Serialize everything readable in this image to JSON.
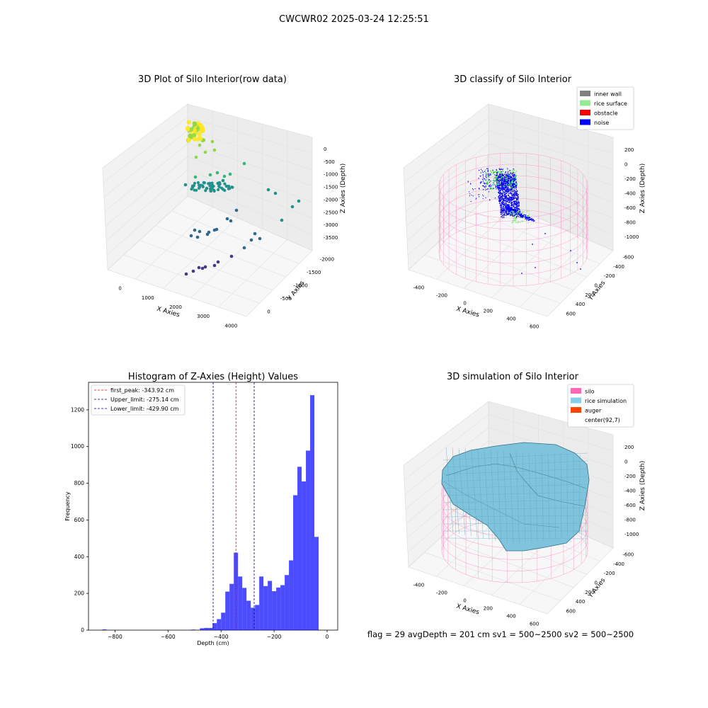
{
  "figure": {
    "suptitle": "CWCWR02 2025-03-24 12:25:51",
    "footer": "flag = 29  avgDepth = 201 cm  sv1 = 500~2500  sv2 = 500~2500"
  },
  "chart_data": [
    {
      "type": "scatter",
      "title": "3D Plot of Silo Interior(row data)",
      "xlabel": "X Axies",
      "ylabel": "Y Axies",
      "zlabel": "Z Axies (Depth)",
      "x_ticks": [
        "0",
        "1000",
        "2000",
        "3000",
        "4000"
      ],
      "y_ticks": [
        "0",
        "-500",
        "-1000",
        "-1500",
        "-2000"
      ],
      "z_ticks": [
        "0",
        "-500",
        "-1000",
        "-1500",
        "-2000",
        "-2500",
        "-3000",
        "-3500"
      ],
      "colormap": [
        "#fde725",
        "#90d743",
        "#35b779",
        "#21918c",
        "#31688e",
        "#443983",
        "#440154"
      ]
    },
    {
      "type": "scatter",
      "title": "3D classify of Silo Interior",
      "xlabel": "X Axies",
      "ylabel": "Y Axies",
      "zlabel": "Z Axies (Depth)",
      "x_ticks": [
        "-400",
        "-200",
        "0",
        "200",
        "400",
        "600"
      ],
      "y_ticks": [
        "600",
        "400",
        "200",
        "0",
        "-200",
        "-400",
        "-600"
      ],
      "z_ticks": [
        "200",
        "0",
        "-200",
        "-400",
        "-600",
        "-800",
        "-1000"
      ],
      "legend": [
        {
          "label": "inner wall",
          "color": "#808080"
        },
        {
          "label": "rice surface",
          "color": "#90ee90"
        },
        {
          "label": "obstacle",
          "color": "#ff0000"
        },
        {
          "label": "noise",
          "color": "#0000ff"
        }
      ],
      "legend_position": "top-right"
    },
    {
      "type": "bar",
      "title": "Histogram of Z-Axies (Height) Values",
      "xlabel": "Depth (cm)",
      "ylabel": "Frequency",
      "xlim": [
        -900,
        40
      ],
      "ylim": [
        0,
        1350
      ],
      "x_ticks": [
        -800,
        -600,
        -400,
        -200,
        0
      ],
      "y_ticks": [
        0,
        200,
        400,
        600,
        800,
        1000,
        1200
      ],
      "bin_width": 16,
      "bins": [
        {
          "x": -848,
          "count": 4
        },
        {
          "x": -512,
          "count": 3
        },
        {
          "x": -480,
          "count": 10
        },
        {
          "x": -464,
          "count": 12
        },
        {
          "x": -448,
          "count": 12
        },
        {
          "x": -432,
          "count": 38
        },
        {
          "x": -416,
          "count": 60
        },
        {
          "x": -400,
          "count": 95
        },
        {
          "x": -384,
          "count": 210
        },
        {
          "x": -368,
          "count": 252
        },
        {
          "x": -352,
          "count": 422
        },
        {
          "x": -336,
          "count": 292
        },
        {
          "x": -320,
          "count": 230
        },
        {
          "x": -304,
          "count": 160
        },
        {
          "x": -288,
          "count": 122
        },
        {
          "x": -272,
          "count": 137
        },
        {
          "x": -256,
          "count": 292
        },
        {
          "x": -240,
          "count": 240
        },
        {
          "x": -224,
          "count": 268
        },
        {
          "x": -208,
          "count": 212
        },
        {
          "x": -192,
          "count": 232
        },
        {
          "x": -176,
          "count": 245
        },
        {
          "x": -160,
          "count": 300
        },
        {
          "x": -144,
          "count": 380
        },
        {
          "x": -128,
          "count": 735
        },
        {
          "x": -112,
          "count": 890
        },
        {
          "x": -96,
          "count": 810
        },
        {
          "x": -80,
          "count": 978
        },
        {
          "x": -64,
          "count": 1280
        },
        {
          "x": -48,
          "count": 508
        }
      ],
      "bar_color": "#0000ff",
      "lines": [
        {
          "label": "first_peak: -343.92 cm",
          "x": -343.92,
          "color": "#ff0000"
        },
        {
          "label": "Upper_limit: -275.14 cm",
          "x": -275.14,
          "color": "#00008b"
        },
        {
          "label": "Lower_limit: -429.90 cm",
          "x": -429.9,
          "color": "#00008b"
        }
      ],
      "legend_position": "top-left"
    },
    {
      "type": "surface",
      "title": "3D simulation of Silo Interior",
      "xlabel": "X Axies",
      "ylabel": "Y Axies",
      "zlabel": "Z Axies (Depth)",
      "x_ticks": [
        "-400",
        "-200",
        "0",
        "200",
        "400",
        "600"
      ],
      "y_ticks": [
        "600",
        "400",
        "200",
        "0",
        "-200",
        "-400",
        "-600"
      ],
      "z_ticks": [
        "200",
        "0",
        "-200",
        "-400",
        "-600",
        "-800",
        "-1000"
      ],
      "legend": [
        {
          "label": "silo",
          "color": "#ff69b4"
        },
        {
          "label": "rice simulation",
          "color": "#87ceeb"
        },
        {
          "label": "auger",
          "color": "#ff4500"
        },
        {
          "label": "center(92,7)",
          "color": ""
        }
      ],
      "legend_position": "top-right"
    }
  ]
}
